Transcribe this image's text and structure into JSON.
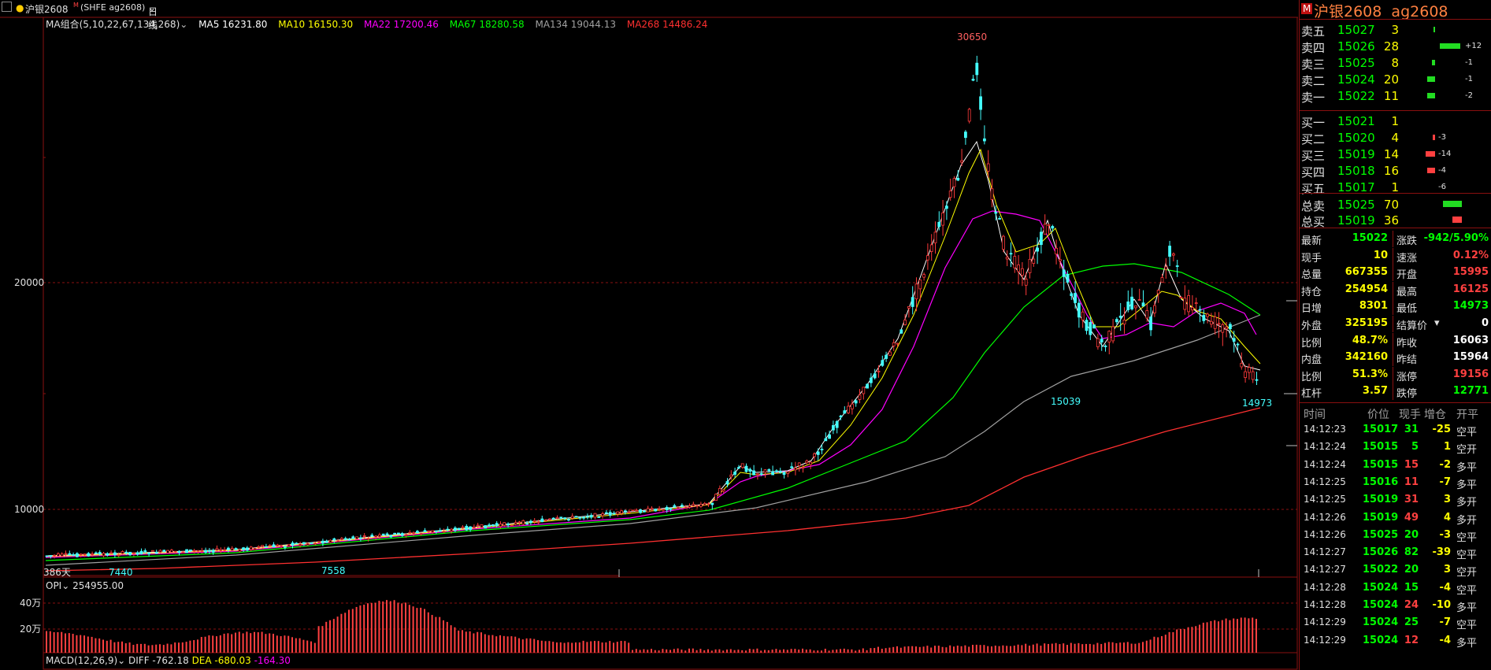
{
  "app": {
    "symbol_name": "沪银2608",
    "symbol_code": "(SHFE ag2608)",
    "period": "日线",
    "panel_badge": "M",
    "panel_title": "沪银2608  ag2608"
  },
  "ma_legend": [
    {
      "label": "MA组合(5,10,22,67,134,268)",
      "color": "#e0e0e0"
    },
    {
      "label": "MA5 16231.80",
      "color": "#ffffff"
    },
    {
      "label": "MA10 16150.30",
      "color": "#ffff00"
    },
    {
      "label": "MA22 17200.46",
      "color": "#ff00ff"
    },
    {
      "label": "MA67 18280.58",
      "color": "#00ff00"
    },
    {
      "label": "MA134 19044.13",
      "color": "#a0a0a0"
    },
    {
      "label": "MA268 14486.24",
      "color": "#ff3030"
    }
  ],
  "chart_data": {
    "type": "candlestick",
    "y_ticks": [
      20000,
      10000
    ],
    "annotations": {
      "high": "30650",
      "low_mid": "15039",
      "low_last": "14973",
      "left_low1": "7440",
      "left_low2": "7558",
      "days": "386天"
    },
    "opi": {
      "label": "OPI",
      "value": "254955.00",
      "ticks": [
        "40万",
        "20万"
      ]
    },
    "macd": {
      "label": "MACD(12,26,9)",
      "diff": "DIFF -762.18",
      "dea": "DEA -680.03",
      "macd": "-164.30"
    },
    "colors": {
      "up": "#ff3a3a",
      "down": "#44ffff",
      "grid": "#8a1010"
    }
  },
  "order_book": {
    "asks": [
      {
        "label": "卖五",
        "price": "15027",
        "vol": "3",
        "chg": ""
      },
      {
        "label": "卖四",
        "price": "15026",
        "vol": "28",
        "chg": "+12"
      },
      {
        "label": "卖三",
        "price": "15025",
        "vol": "8",
        "chg": "-1"
      },
      {
        "label": "卖二",
        "price": "15024",
        "vol": "20",
        "chg": "-1"
      },
      {
        "label": "卖一",
        "price": "15022",
        "vol": "11",
        "chg": "-2"
      }
    ],
    "bids": [
      {
        "label": "买一",
        "price": "15021",
        "vol": "1",
        "chg": ""
      },
      {
        "label": "买二",
        "price": "15020",
        "vol": "4",
        "chg": "-3"
      },
      {
        "label": "买三",
        "price": "15019",
        "vol": "14",
        "chg": "-14"
      },
      {
        "label": "买四",
        "price": "15018",
        "vol": "16",
        "chg": "-4"
      },
      {
        "label": "买五",
        "price": "15017",
        "vol": "1",
        "chg": "-6"
      }
    ],
    "totals": [
      {
        "label": "总卖",
        "price": "15025",
        "vol": "70"
      },
      {
        "label": "总买",
        "price": "15019",
        "vol": "36"
      }
    ]
  },
  "stats": [
    {
      "l1": "最新",
      "v1": "15022",
      "l2": "涨跌",
      "v2": "-942/5.90%"
    },
    {
      "l1": "现手",
      "v1": "10",
      "l2": "速涨",
      "v2": "0.12%"
    },
    {
      "l1": "总量",
      "v1": "667355",
      "l2": "开盘",
      "v2": "15995"
    },
    {
      "l1": "持仓",
      "v1": "254954",
      "l2": "最高",
      "v2": "16125"
    },
    {
      "l1": "日增",
      "v1": "8301",
      "l2": "最低",
      "v2": "14973"
    },
    {
      "l1": "外盘",
      "v1": "325195",
      "l2": "结算价",
      "v2": "0"
    },
    {
      "l1": "比例",
      "v1": "48.7%",
      "l2": "昨收",
      "v2": "16063"
    },
    {
      "l1": "内盘",
      "v1": "342160",
      "l2": "昨结",
      "v2": "15964"
    },
    {
      "l1": "比例",
      "v1": "51.3%",
      "l2": "涨停",
      "v2": "19156"
    },
    {
      "l1": "杠杆",
      "v1": "3.57",
      "l2": "跌停",
      "v2": "12771"
    }
  ],
  "ticks_header": [
    "时间",
    "价位",
    "现手",
    "增仓",
    "开平"
  ],
  "ticks": [
    {
      "time": "14:12:23",
      "price": "15017",
      "vol": "31",
      "chg": "-25",
      "type": "空平"
    },
    {
      "time": "14:12:24",
      "price": "15015",
      "vol": "5",
      "chg": "1",
      "type": "空开"
    },
    {
      "time": "14:12:24",
      "price": "15015",
      "vol": "15",
      "chg": "-2",
      "type": "多平"
    },
    {
      "time": "14:12:25",
      "price": "15016",
      "vol": "11",
      "chg": "-7",
      "type": "多平"
    },
    {
      "time": "14:12:25",
      "price": "15019",
      "vol": "31",
      "chg": "3",
      "type": "多开"
    },
    {
      "time": "14:12:26",
      "price": "15019",
      "vol": "49",
      "chg": "4",
      "type": "多开"
    },
    {
      "time": "14:12:26",
      "price": "15025",
      "vol": "20",
      "chg": "-3",
      "type": "空平"
    },
    {
      "time": "14:12:27",
      "price": "15026",
      "vol": "82",
      "chg": "-39",
      "type": "空平"
    },
    {
      "time": "14:12:27",
      "price": "15022",
      "vol": "20",
      "chg": "3",
      "type": "空开"
    },
    {
      "time": "14:12:28",
      "price": "15024",
      "vol": "15",
      "chg": "-4",
      "type": "空平"
    },
    {
      "time": "14:12:28",
      "price": "15024",
      "vol": "24",
      "chg": "-10",
      "type": "多平"
    },
    {
      "time": "14:12:29",
      "price": "15024",
      "vol": "25",
      "chg": "-7",
      "type": "空平"
    },
    {
      "time": "14:12:29",
      "price": "15024",
      "vol": "12",
      "chg": "-4",
      "type": "多平"
    }
  ]
}
